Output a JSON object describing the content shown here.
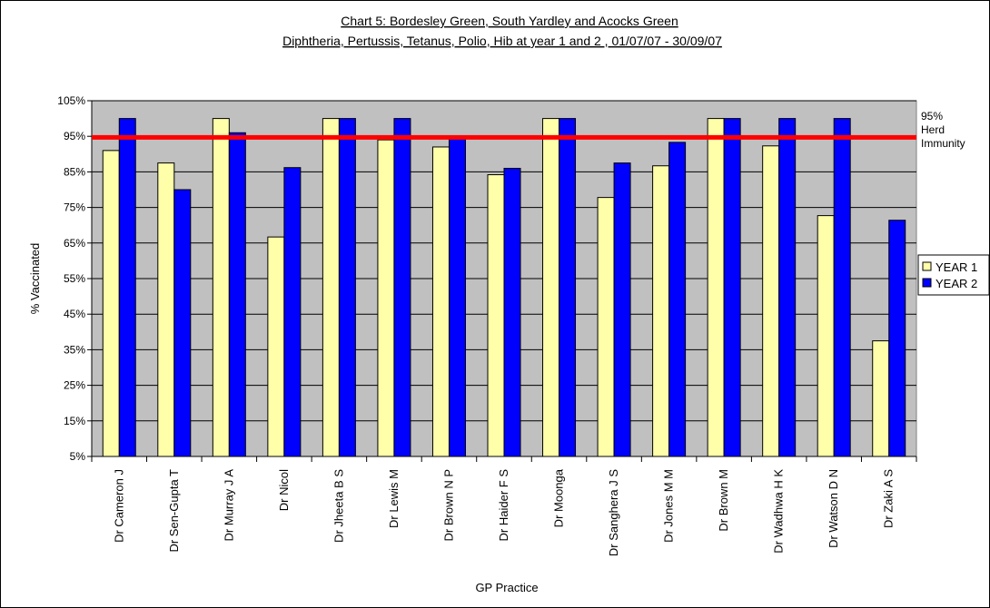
{
  "chart_data": {
    "type": "bar",
    "title": "Chart 5: Bordesley Green, South Yardley and Acocks Green",
    "subtitle": "Diphtheria, Pertussis, Tetanus, Polio, Hib at year 1 and 2 , 01/07/07 - 30/09/07",
    "xlabel": "GP Practice",
    "ylabel": "% Vaccinated",
    "ylim": [
      5,
      105
    ],
    "yticks": [
      "5%",
      "15%",
      "25%",
      "35%",
      "45%",
      "55%",
      "65%",
      "75%",
      "85%",
      "95%",
      "105%"
    ],
    "grid": true,
    "legend_position": "right",
    "categories": [
      "Dr Cameron J",
      "Dr Sen-Gupta T",
      "Dr Murray J A",
      "Dr Nicol",
      "Dr Jheeta B S",
      "Dr Lewis M",
      "Dr Brown N P",
      "Dr Haider F S",
      "Dr Moonga",
      "Dr Sanghera J S",
      "Dr Jones M M",
      "Dr Brown M",
      "Dr Wadhwa H K",
      "Dr Watson D N",
      "Dr Zaki A S"
    ],
    "series": [
      {
        "name": "YEAR 1",
        "color": "#FFFFAA",
        "values": [
          91,
          87.5,
          100,
          66.7,
          100,
          94,
          92,
          84.2,
          100,
          77.8,
          86.7,
          100,
          92.3,
          72.7,
          37.5
        ]
      },
      {
        "name": "YEAR 2",
        "color": "#0000FF",
        "values": [
          100,
          80,
          96,
          86.2,
          100,
          100,
          94.7,
          86,
          100,
          87.5,
          93.3,
          100,
          100,
          100,
          71.4
        ]
      }
    ],
    "reference_line": {
      "value": 94.7,
      "color": "#FF0000",
      "label_lines": [
        "95%",
        "Herd",
        "Immunity"
      ]
    },
    "plot_background": "#C0C0C0"
  }
}
